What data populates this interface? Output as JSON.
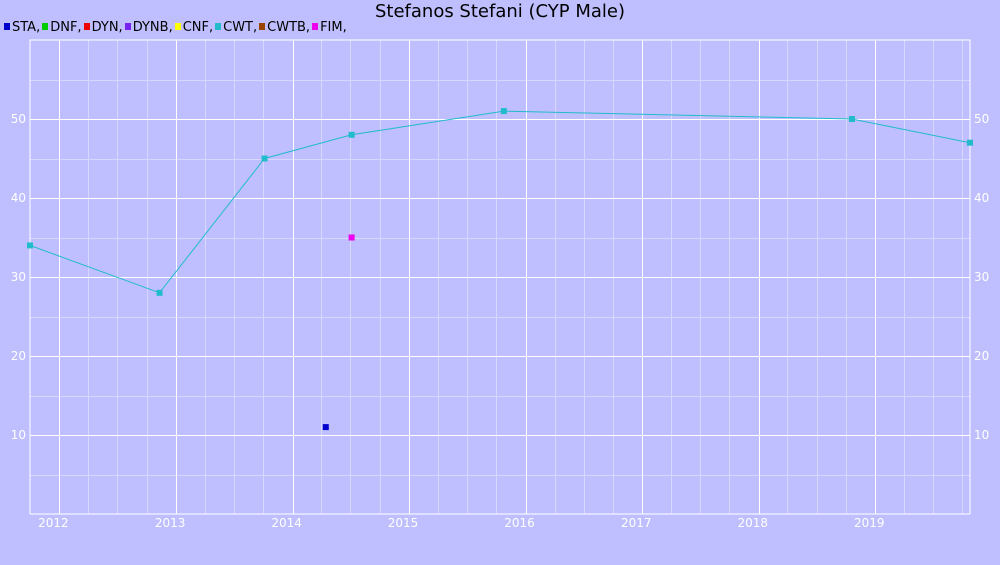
{
  "chart_data": {
    "type": "line",
    "title": "Stefanos Stefani (CYP Male)",
    "legend_position": "top-left",
    "grid": true,
    "x_range": [
      "2011-10-01",
      "2019-10-25"
    ],
    "y_range": [
      0,
      60
    ],
    "x_ticks": [
      "2012",
      "2013",
      "2014",
      "2015",
      "2016",
      "2017",
      "2018",
      "2019"
    ],
    "y_ticks": [
      10,
      20,
      30,
      40,
      50
    ],
    "series": [
      {
        "name": "STA",
        "legend_label": "STA,",
        "color": "#0000cc",
        "line": false,
        "points": [
          {
            "x": "2014-04-15",
            "y": 11
          }
        ]
      },
      {
        "name": "DNF",
        "legend_label": "DNF,",
        "color": "#00cc00",
        "line": false,
        "points": []
      },
      {
        "name": "DYN",
        "legend_label": "DYN,",
        "color": "#ee0000",
        "line": false,
        "points": []
      },
      {
        "name": "DYNB",
        "legend_label": "DYNB,",
        "color": "#7722ee",
        "line": false,
        "points": []
      },
      {
        "name": "CNF",
        "legend_label": "CNF,",
        "color": "#ffff00",
        "line": false,
        "points": []
      },
      {
        "name": "CWT",
        "legend_label": "CWT,",
        "color": "#22bbcc",
        "line": true,
        "points": [
          {
            "x": "2011-10-01",
            "y": 34
          },
          {
            "x": "2012-11-10",
            "y": 28
          },
          {
            "x": "2013-10-05",
            "y": 45
          },
          {
            "x": "2014-07-05",
            "y": 48
          },
          {
            "x": "2015-10-25",
            "y": 51
          },
          {
            "x": "2018-10-20",
            "y": 50
          },
          {
            "x": "2019-10-25",
            "y": 47
          }
        ]
      },
      {
        "name": "CWTB",
        "legend_label": "CWTB,",
        "color": "#994400",
        "line": false,
        "points": []
      },
      {
        "name": "FIM",
        "legend_label": "FIM,",
        "color": "#ee00ee",
        "line": false,
        "points": [
          {
            "x": "2014-07-05",
            "y": 35
          }
        ]
      }
    ]
  }
}
